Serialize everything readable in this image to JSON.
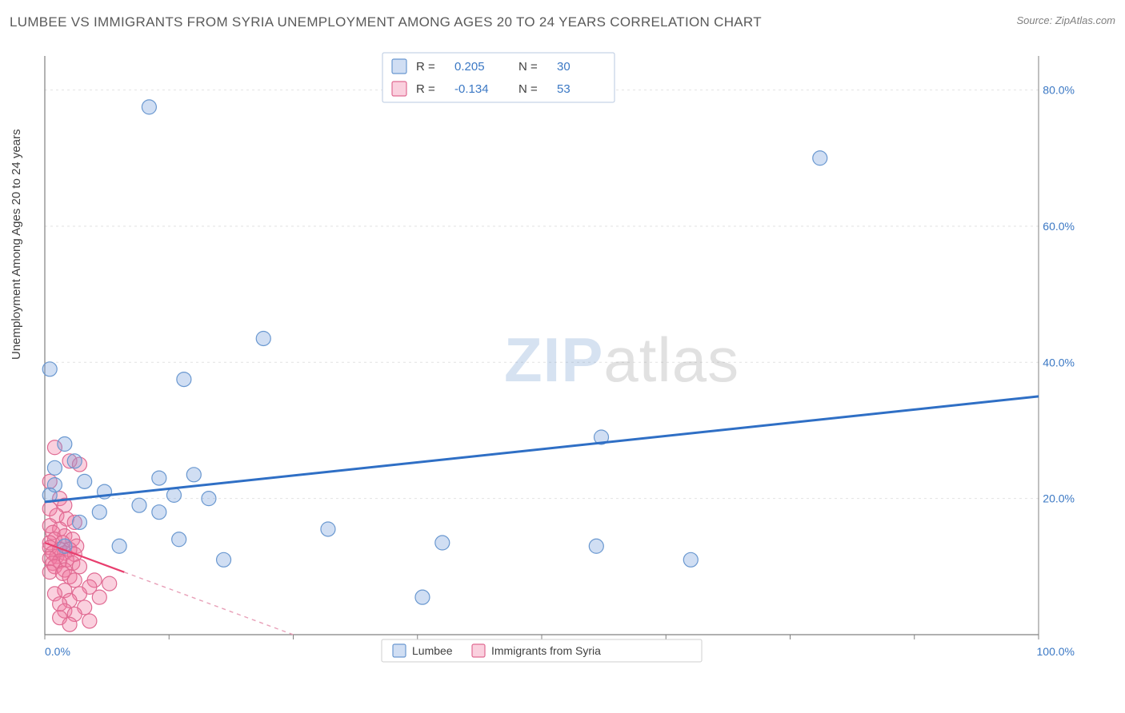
{
  "title": "LUMBEE VS IMMIGRANTS FROM SYRIA UNEMPLOYMENT AMONG AGES 20 TO 24 YEARS CORRELATION CHART",
  "source": "Source: ZipAtlas.com",
  "ylabel": "Unemployment Among Ages 20 to 24 years",
  "watermark": {
    "part1": "ZIP",
    "part2": "atlas"
  },
  "chart": {
    "type": "scatter",
    "background_color": "#ffffff",
    "grid_color": "#e2e2e2",
    "grid_dash": "3,4",
    "axis_line_color": "#808080",
    "xlim": [
      0,
      100
    ],
    "ylim": [
      0,
      85
    ],
    "xtick_positions": [
      0,
      12.5,
      25,
      37.5,
      50,
      62.5,
      75,
      87.5,
      100
    ],
    "xtick_labels": {
      "0": "0.0%",
      "100": "100.0%"
    },
    "xtick_label_color": "#3b78c4",
    "xtick_label_fontsize": 14,
    "ytick_positions": [
      20,
      40,
      60,
      80
    ],
    "ytick_labels": {
      "20": "20.0%",
      "40": "40.0%",
      "60": "60.0%",
      "80": "80.0%"
    },
    "ytick_label_color": "#3b78c4",
    "ytick_label_fontsize": 14,
    "marker_radius": 9,
    "marker_stroke_width": 1.2,
    "series": {
      "lumbee": {
        "label": "Lumbee",
        "fill": "rgba(120,160,220,0.35)",
        "stroke": "#6a98d0",
        "r_value": "0.205",
        "n_value": "30",
        "trend": {
          "x1": 0,
          "y1": 19.5,
          "x2": 100,
          "y2": 35.0,
          "color": "#2f6fc5",
          "width": 3,
          "dash": "none"
        },
        "points": [
          [
            10.5,
            77.5
          ],
          [
            78.0,
            70.0
          ],
          [
            22.0,
            43.5
          ],
          [
            14.0,
            37.5
          ],
          [
            0.5,
            39.0
          ],
          [
            56.0,
            29.0
          ],
          [
            2.0,
            28.0
          ],
          [
            3.0,
            25.5
          ],
          [
            1.0,
            24.5
          ],
          [
            11.5,
            23.0
          ],
          [
            15.0,
            23.5
          ],
          [
            1.0,
            22.0
          ],
          [
            6.0,
            21.0
          ],
          [
            13.0,
            20.5
          ],
          [
            9.5,
            19.0
          ],
          [
            16.5,
            20.0
          ],
          [
            5.5,
            18.0
          ],
          [
            11.5,
            18.0
          ],
          [
            3.5,
            16.5
          ],
          [
            28.5,
            15.5
          ],
          [
            13.5,
            14.0
          ],
          [
            7.5,
            13.0
          ],
          [
            18.0,
            11.0
          ],
          [
            40.0,
            13.5
          ],
          [
            55.5,
            13.0
          ],
          [
            65.0,
            11.0
          ],
          [
            38.0,
            5.5
          ],
          [
            2.0,
            13.0
          ],
          [
            0.5,
            20.5
          ],
          [
            4.0,
            22.5
          ]
        ]
      },
      "syria": {
        "label": "Immigrants from Syria",
        "fill": "rgba(240,120,160,0.35)",
        "stroke": "#e06a92",
        "r_value": "-0.134",
        "n_value": "53",
        "trend": {
          "x1": 0,
          "y1": 13.5,
          "x2": 25,
          "y2": 0.0,
          "color": "#e8a0b8",
          "width": 1.4,
          "dash": "5,5"
        },
        "trend_solid_end": 8,
        "points": [
          [
            1.0,
            27.5
          ],
          [
            2.5,
            25.5
          ],
          [
            3.5,
            25.0
          ],
          [
            0.5,
            22.5
          ],
          [
            1.5,
            20.0
          ],
          [
            2.0,
            19.0
          ],
          [
            0.5,
            18.5
          ],
          [
            1.2,
            17.5
          ],
          [
            2.2,
            17.0
          ],
          [
            3.0,
            16.5
          ],
          [
            0.5,
            16.0
          ],
          [
            1.5,
            15.5
          ],
          [
            0.8,
            15.0
          ],
          [
            2.0,
            14.5
          ],
          [
            2.8,
            14.0
          ],
          [
            1.0,
            14.0
          ],
          [
            0.5,
            13.5
          ],
          [
            1.8,
            13.5
          ],
          [
            3.2,
            13.0
          ],
          [
            0.5,
            12.8
          ],
          [
            1.5,
            12.5
          ],
          [
            2.5,
            12.5
          ],
          [
            0.8,
            12.0
          ],
          [
            2.0,
            12.0
          ],
          [
            3.0,
            11.8
          ],
          [
            1.2,
            11.5
          ],
          [
            0.5,
            11.2
          ],
          [
            2.2,
            11.0
          ],
          [
            1.5,
            10.8
          ],
          [
            0.8,
            10.5
          ],
          [
            2.8,
            10.5
          ],
          [
            3.5,
            10.0
          ],
          [
            1.0,
            10.0
          ],
          [
            2.0,
            9.5
          ],
          [
            0.5,
            9.2
          ],
          [
            1.8,
            9.0
          ],
          [
            2.5,
            8.5
          ],
          [
            5.0,
            8.0
          ],
          [
            3.0,
            8.0
          ],
          [
            6.5,
            7.5
          ],
          [
            4.5,
            7.0
          ],
          [
            2.0,
            6.5
          ],
          [
            1.0,
            6.0
          ],
          [
            3.5,
            6.0
          ],
          [
            5.5,
            5.5
          ],
          [
            2.5,
            5.0
          ],
          [
            1.5,
            4.5
          ],
          [
            4.0,
            4.0
          ],
          [
            2.0,
            3.5
          ],
          [
            3.0,
            3.0
          ],
          [
            1.5,
            2.5
          ],
          [
            4.5,
            2.0
          ],
          [
            2.5,
            1.5
          ]
        ]
      }
    },
    "legend_top": {
      "border_color": "#b8c8e0",
      "bg": "#ffffff",
      "text_color_label": "#404040",
      "text_color_value": "#3b78c4",
      "r_label": "R  =",
      "n_label": "N  ="
    },
    "legend_bottom": {
      "border_color": "#cfcfcf",
      "bg": "#ffffff"
    }
  }
}
